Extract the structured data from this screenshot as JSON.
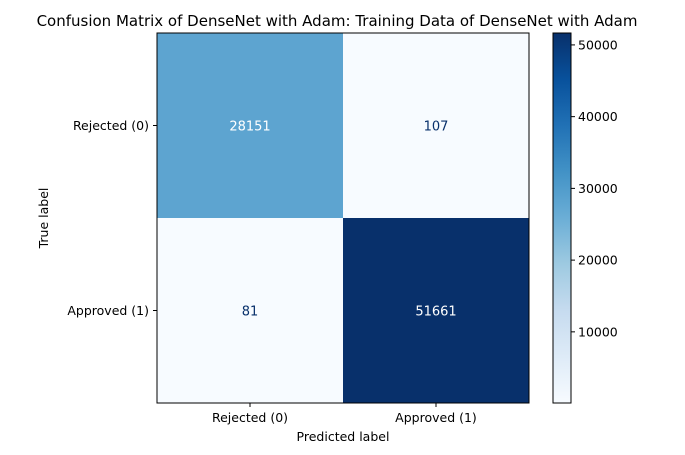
{
  "chart_data": {
    "type": "heatmap",
    "title": "Confusion Matrix of DenseNet with Adam: Training Data of DenseNet with Adam",
    "xlabel": "Predicted label",
    "ylabel": "True label",
    "x_categories": [
      "Rejected (0)",
      "Approved (1)"
    ],
    "y_categories": [
      "Rejected (0)",
      "Approved (1)"
    ],
    "values": [
      [
        28151,
        107
      ],
      [
        81,
        51661
      ]
    ],
    "colormap": "Blues",
    "colorbar": {
      "ticks": [
        10000,
        20000,
        30000,
        40000,
        50000
      ],
      "tick_labels": [
        "10000",
        "20000",
        "30000",
        "40000",
        "50000"
      ],
      "range": [
        81,
        51661
      ]
    },
    "text_colors": {
      "light_cell": "#08306b",
      "dark_cell": "#ffffff"
    }
  }
}
